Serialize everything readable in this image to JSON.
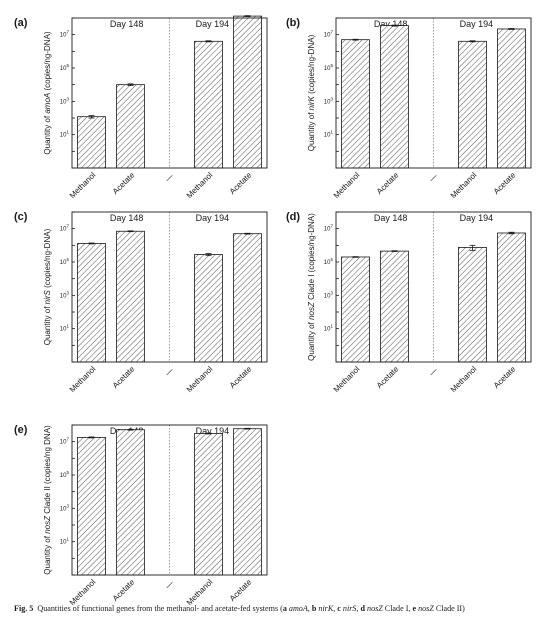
{
  "chart_data": [
    {
      "type": "bar",
      "panel_label": "(a)",
      "gene": "amoA",
      "ylabel_prefix": "Quantity of ",
      "ylabel_suffix": " (copies/ng-DNA)",
      "yscale": "log",
      "ylim": [
        0.1,
        100000000
      ],
      "groups": [
        "Day 148",
        "Day 194"
      ],
      "categories": [
        "Methanol",
        "Acetate",
        "Methanol",
        "Acetate"
      ],
      "separator_tick": "—",
      "values": [
        120,
        10000,
        4000000,
        130000000
      ],
      "errors": [
        20,
        1200,
        300000,
        8000000
      ]
    },
    {
      "type": "bar",
      "panel_label": "(b)",
      "gene": "nirK",
      "ylabel_prefix": "Quantity of ",
      "ylabel_suffix": " (copies/ng-DNA)",
      "yscale": "log",
      "ylim": [
        0.1,
        100000000
      ],
      "groups": [
        "Day 148",
        "Day 194"
      ],
      "categories": [
        "Methanol",
        "Acetate",
        "Methanol",
        "Acetate"
      ],
      "separator_tick": "—",
      "values": [
        5000000,
        35000000,
        4000000,
        22000000
      ],
      "errors": [
        300000,
        2500000,
        300000,
        1500000
      ]
    },
    {
      "type": "bar",
      "panel_label": "(c)",
      "gene": "nirS",
      "ylabel_prefix": "Quantity of ",
      "ylabel_suffix": " (copies/ng-DNA)",
      "yscale": "log",
      "ylim": [
        0.1,
        100000000
      ],
      "groups": [
        "Day 148",
        "Day 194"
      ],
      "categories": [
        "Methanol",
        "Acetate",
        "Methanol",
        "Acetate"
      ],
      "separator_tick": "—",
      "values": [
        1300000,
        7000000,
        280000,
        5000000
      ],
      "errors": [
        80000,
        400000,
        40000,
        300000
      ]
    },
    {
      "type": "bar",
      "panel_label": "(d)",
      "gene": "nosZ",
      "ylabel_prefix": "Quantity of ",
      "ylabel_suffix": " Clade I (copies/ng-DNA)",
      "yscale": "log",
      "ylim": [
        0.1,
        100000000
      ],
      "groups": [
        "Day 148",
        "Day 194"
      ],
      "categories": [
        "Methanol",
        "Acetate",
        "Methanol",
        "Acetate"
      ],
      "separator_tick": "—",
      "values": [
        200000,
        450000,
        750000,
        5500000
      ],
      "errors": [
        10000,
        25000,
        250000,
        600000
      ]
    },
    {
      "type": "bar",
      "panel_label": "(e)",
      "gene": "nosZ",
      "ylabel_prefix": "Quantity of ",
      "ylabel_suffix": " Clade II (copies/ng DNA)",
      "yscale": "log",
      "ylim": [
        0.1,
        100000000
      ],
      "groups": [
        "Day 148",
        "Day 194"
      ],
      "categories": [
        "Methanol",
        "Acetate",
        "Methanol",
        "Acetate"
      ],
      "separator_tick": "—",
      "values": [
        18000000,
        52000000,
        31000000,
        60000000
      ],
      "errors": [
        1200000,
        3000000,
        2000000,
        3500000
      ]
    }
  ],
  "caption": {
    "fig": "Fig. 5",
    "text": "Quantities of functional genes from the methanol- and acetate-fed systems (",
    "items": [
      {
        "letter": "a",
        "gene": "amoA",
        "suffix": ""
      },
      {
        "letter": "b",
        "gene": "nirK",
        "suffix": ""
      },
      {
        "letter": "c",
        "gene": "nirS",
        "suffix": ""
      },
      {
        "letter": "d",
        "gene": "nosZ",
        "suffix": " Clade I"
      },
      {
        "letter": "e",
        "gene": "nosZ",
        "suffix": " Clade II"
      }
    ],
    "close": ")"
  },
  "colors": {
    "axis": "#1a1a1a",
    "hatch": "#555555",
    "divider": "#8a8a8a"
  }
}
